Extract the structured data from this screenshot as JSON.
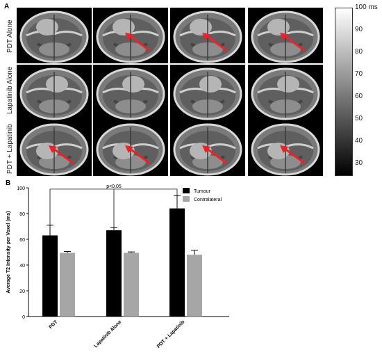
{
  "panel_a": {
    "letter": "A",
    "rows": [
      {
        "label": "PDT Alone",
        "arrows": [
          false,
          true,
          true,
          true
        ]
      },
      {
        "label": "Lapatinib Alone",
        "arrows": [
          false,
          false,
          false,
          false
        ]
      },
      {
        "label": "PDT + Lapatinib",
        "arrows": [
          true,
          true,
          true,
          true
        ]
      }
    ],
    "colorbar": {
      "ticks": [
        "100 ms",
        "90",
        "80",
        "70",
        "60",
        "50",
        "40",
        "30"
      ],
      "range": [
        25,
        100
      ],
      "colors": {
        "low": "#000000",
        "high": "#ffffff"
      }
    },
    "arrow_color": "#e8242a"
  },
  "panel_b": {
    "letter": "B",
    "chart_data": {
      "type": "bar",
      "categories": [
        "PDT",
        "Lapatinib Alone",
        "PDT + Lapatinib"
      ],
      "series": [
        {
          "name": "Tumour",
          "values": [
            63,
            67,
            84
          ],
          "errors": [
            8,
            2,
            10
          ],
          "color": "#000000"
        },
        {
          "name": "Contralateral",
          "values": [
            49.5,
            49.5,
            48
          ],
          "errors": [
            1,
            0.7,
            3.5
          ],
          "color": "#a6a6a6"
        }
      ],
      "ylabel": "Average T2 Intensity per Voxel (ms)",
      "xlabel": "",
      "ylim": [
        0,
        100
      ],
      "yticks": [
        "0",
        "20",
        "40",
        "60",
        "80",
        "100"
      ],
      "legend_position": "top-right",
      "annotation": "p<0.05",
      "grid": false
    }
  }
}
